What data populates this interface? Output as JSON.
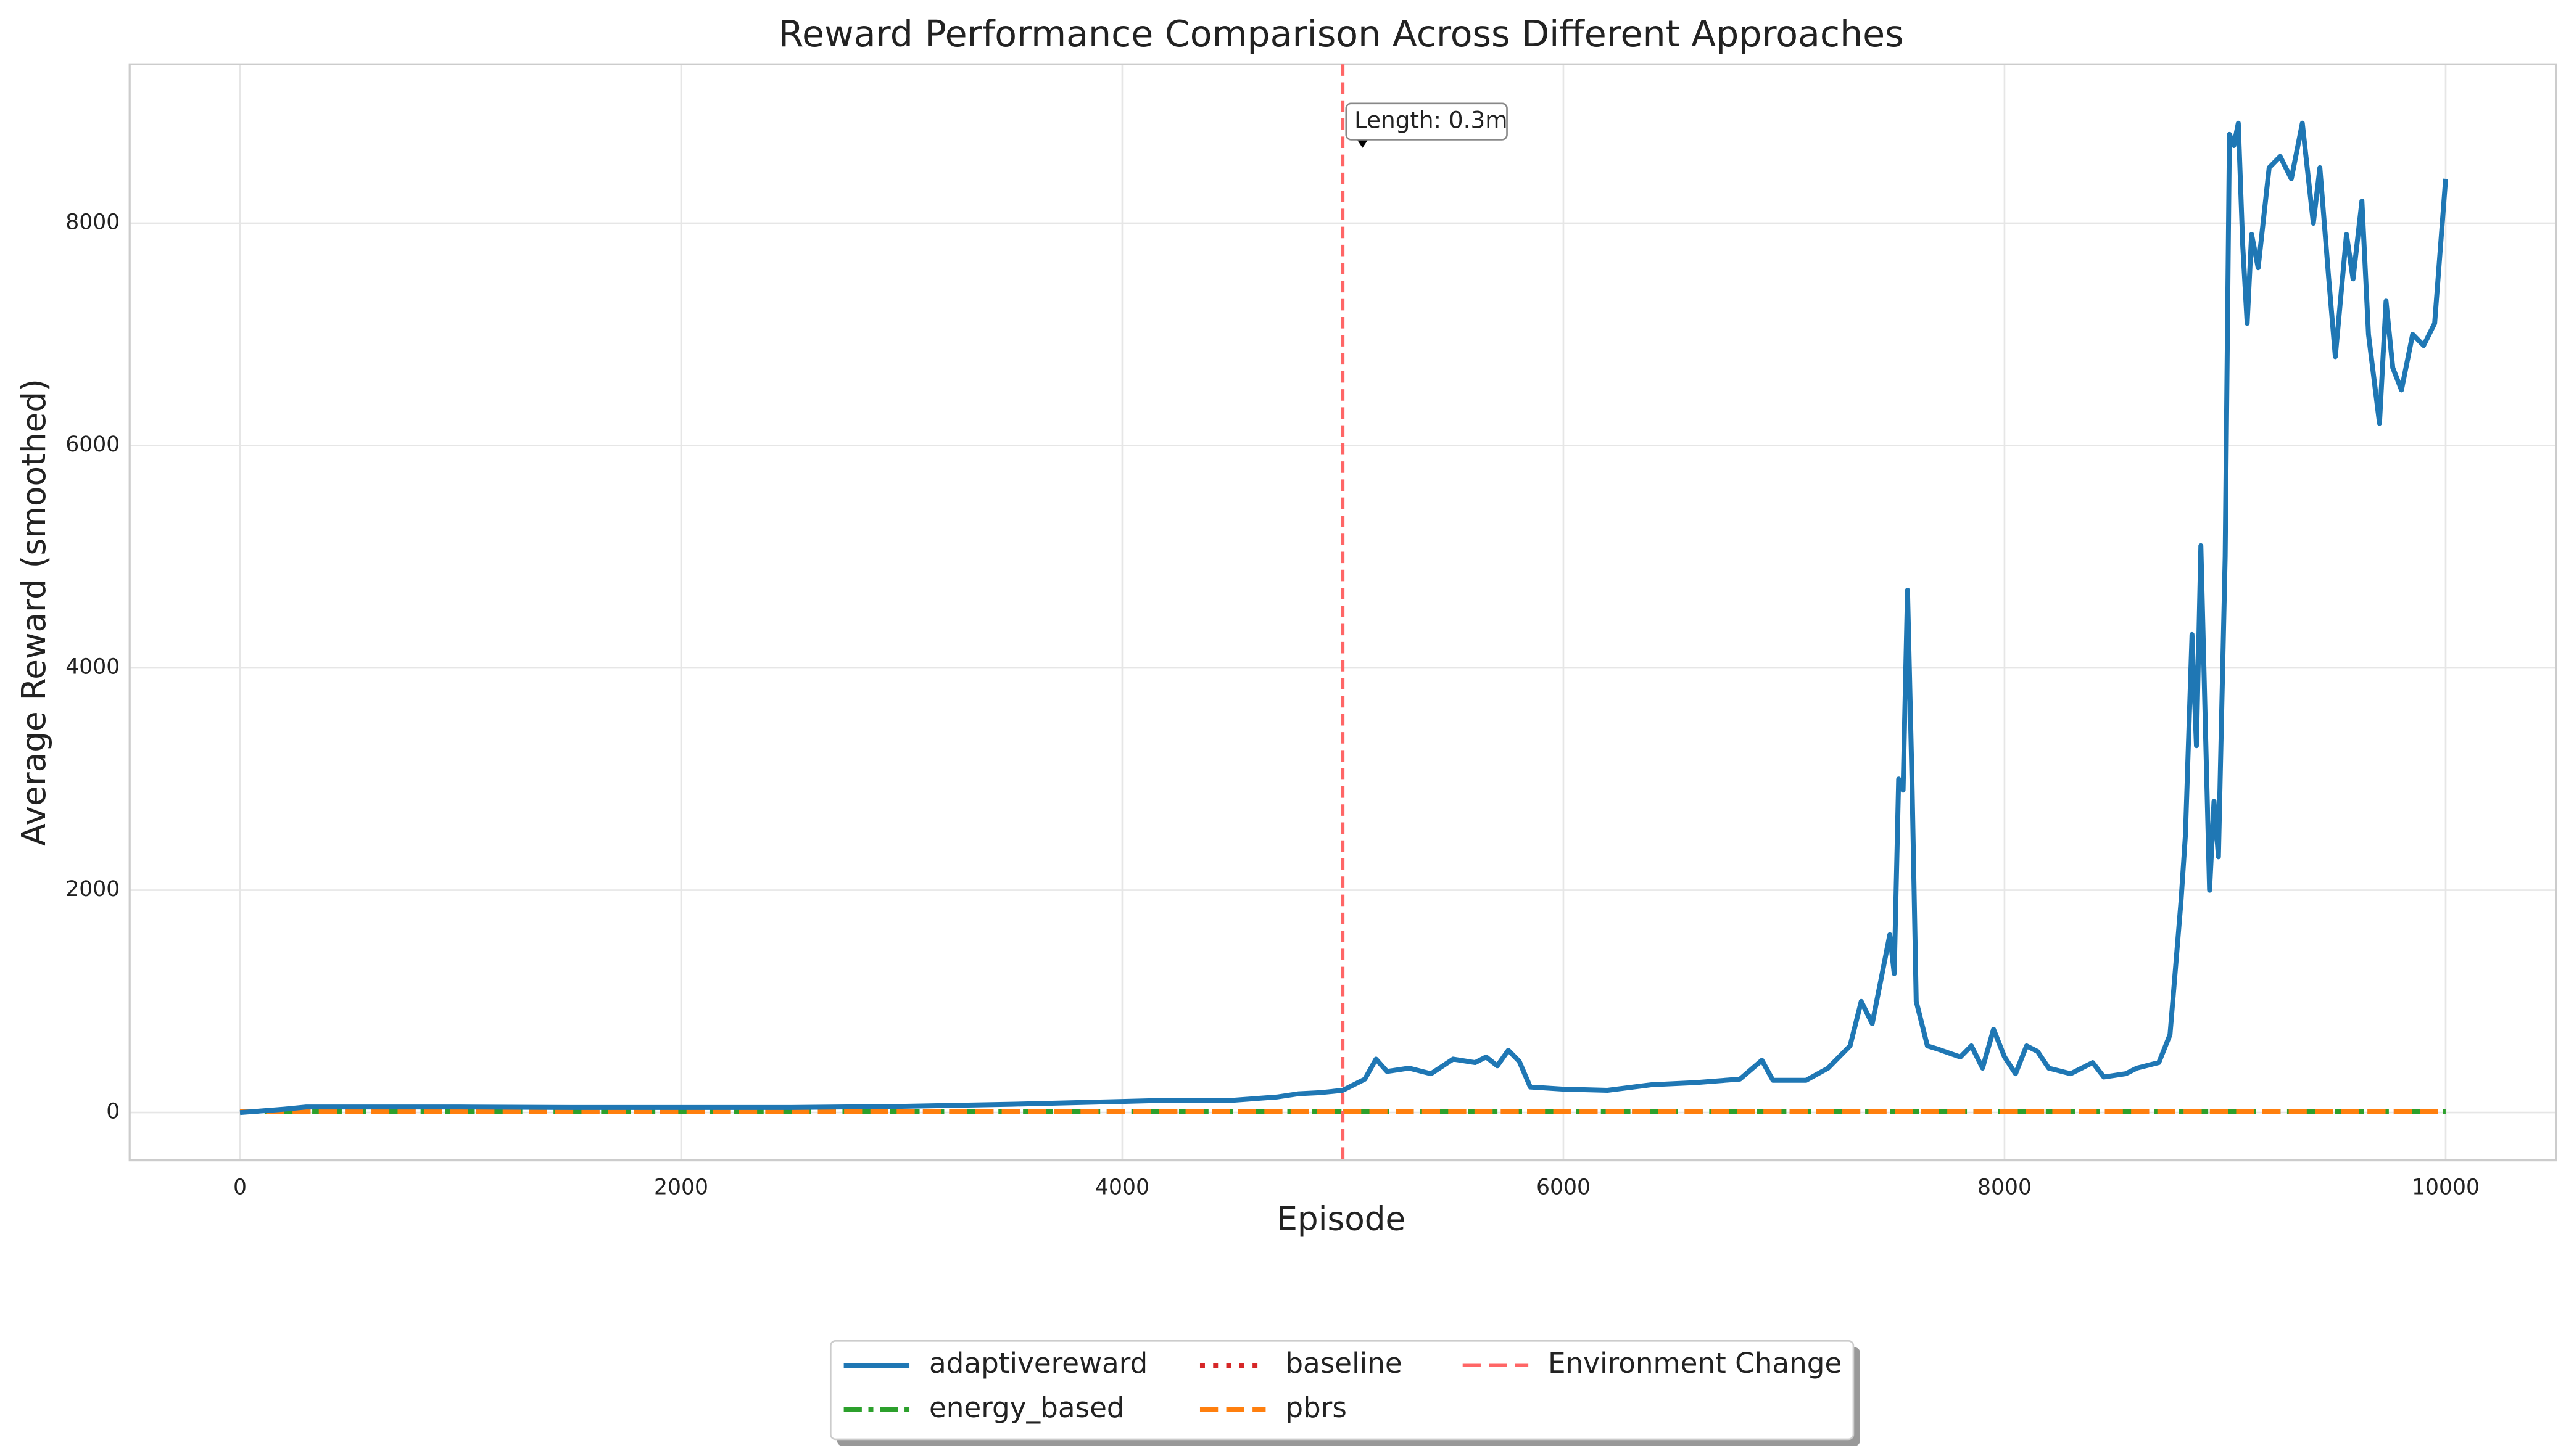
{
  "chart_data": {
    "type": "line",
    "title": "Reward Performance Comparison Across Different Approaches",
    "xlabel": "Episode",
    "ylabel": "Average Reward (smoothed)",
    "xlim": [
      -500,
      10500
    ],
    "ylim": [
      -430,
      9430
    ],
    "xticks": [
      0,
      2000,
      4000,
      6000,
      8000,
      10000
    ],
    "yticks": [
      0,
      2000,
      4000,
      6000,
      8000
    ],
    "grid": true,
    "legend": "lower center",
    "series": [
      {
        "name": "adaptivereward",
        "color": "#1f77b4",
        "linestyle": "solid",
        "x": [
          0,
          200,
          300,
          500,
          1000,
          1500,
          2000,
          2500,
          3000,
          3500,
          4000,
          4200,
          4500,
          4700,
          4800,
          4900,
          5000,
          5100,
          5150,
          5200,
          5300,
          5400,
          5500,
          5600,
          5650,
          5700,
          5750,
          5800,
          5850,
          6000,
          6200,
          6400,
          6600,
          6800,
          6900,
          6950,
          7100,
          7200,
          7300,
          7350,
          7400,
          7450,
          7480,
          7500,
          7520,
          7540,
          7560,
          7580,
          7600,
          7650,
          7700,
          7800,
          7850,
          7900,
          7950,
          8000,
          8050,
          8100,
          8150,
          8200,
          8300,
          8400,
          8450,
          8550,
          8600,
          8700,
          8750,
          8800,
          8820,
          8850,
          8870,
          8890,
          8910,
          8930,
          8950,
          8970,
          9000,
          9020,
          9040,
          9060,
          9080,
          9100,
          9120,
          9150,
          9200,
          9250,
          9300,
          9350,
          9400,
          9430,
          9470,
          9500,
          9550,
          9580,
          9620,
          9650,
          9700,
          9730,
          9760,
          9800,
          9850,
          9900,
          9950,
          10000
        ],
        "values": [
          0,
          30,
          50,
          50,
          50,
          45,
          45,
          45,
          55,
          75,
          100,
          110,
          110,
          140,
          170,
          180,
          200,
          300,
          480,
          370,
          400,
          350,
          480,
          450,
          500,
          420,
          560,
          460,
          230,
          210,
          200,
          250,
          270,
          300,
          470,
          290,
          290,
          400,
          600,
          1000,
          800,
          1300,
          1600,
          1250,
          3000,
          2900,
          4700,
          3000,
          1000,
          600,
          570,
          500,
          600,
          400,
          750,
          500,
          350,
          600,
          550,
          400,
          350,
          450,
          320,
          350,
          400,
          450,
          700,
          1900,
          2500,
          4300,
          3300,
          5100,
          3500,
          2000,
          2800,
          2300,
          5000,
          8800,
          8700,
          8900,
          7800,
          7100,
          7900,
          7600,
          8500,
          8600,
          8400,
          8900,
          8000,
          8500,
          7500,
          6800,
          7900,
          7500,
          8200,
          7000,
          6200,
          7300,
          6700,
          6500,
          7000,
          6900,
          7100,
          8400
        ]
      },
      {
        "name": "energy_based",
        "color": "#2ca02c",
        "linestyle": "dashdot",
        "x": [
          0,
          10000
        ],
        "values": [
          10,
          10
        ]
      },
      {
        "name": "baseline",
        "color": "#d62728",
        "linestyle": "dotted",
        "x": [
          0,
          10000
        ],
        "values": [
          10,
          10
        ]
      },
      {
        "name": "pbrs",
        "color": "#ff7f0e",
        "linestyle": "dashed",
        "x": [
          0,
          10000
        ],
        "values": [
          10,
          10
        ]
      }
    ],
    "vline": {
      "x": 5000,
      "label": "Environment Change",
      "color": "#ff6666"
    },
    "annotation": {
      "text": "Length: 0.3m",
      "x": 5000,
      "y": 8900
    }
  }
}
